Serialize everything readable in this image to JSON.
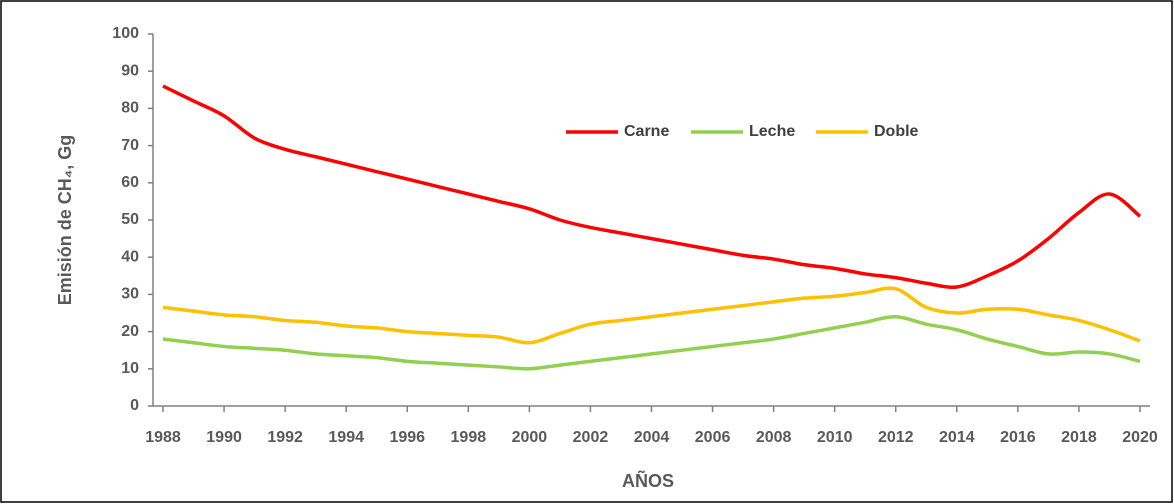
{
  "chart_data": {
    "type": "line",
    "x_label": "AÑOS",
    "y_label": "Emisión de CH₄, Gg",
    "x": [
      1988,
      1989,
      1990,
      1991,
      1992,
      1993,
      1994,
      1995,
      1996,
      1997,
      1998,
      1999,
      2000,
      2001,
      2002,
      2003,
      2004,
      2005,
      2006,
      2007,
      2008,
      2009,
      2010,
      2011,
      2012,
      2013,
      2014,
      2015,
      2016,
      2017,
      2018,
      2019,
      2020
    ],
    "series": [
      {
        "name": "Carne",
        "color": "#ff0000",
        "values": [
          86,
          82,
          78,
          72,
          69,
          67,
          65,
          63,
          61,
          59,
          57,
          55,
          53,
          50,
          48,
          46.5,
          45,
          43.5,
          42,
          40.5,
          39.5,
          38,
          37,
          35.5,
          34.5,
          33,
          32,
          35,
          39,
          45,
          52,
          57,
          51
        ]
      },
      {
        "name": "Leche",
        "color": "#92d050",
        "values": [
          18,
          17,
          16,
          15.5,
          15,
          14,
          13.5,
          13,
          12,
          11.5,
          11,
          10.5,
          10,
          11,
          12,
          13,
          14,
          15,
          16,
          17,
          18,
          19.5,
          21,
          22.5,
          24,
          22,
          20.5,
          18,
          16,
          14,
          14.5,
          14,
          12
        ]
      },
      {
        "name": "Doble",
        "color": "#ffc000",
        "values": [
          26.5,
          25.5,
          24.5,
          24,
          23,
          22.5,
          21.5,
          21,
          20,
          19.5,
          19,
          18.5,
          17,
          19.5,
          22,
          23,
          24,
          25,
          26,
          27,
          28,
          29,
          29.5,
          30.5,
          31.5,
          26.5,
          25,
          26,
          26,
          24.5,
          23,
          20.5,
          17.5
        ]
      }
    ],
    "xlim": [
      1988,
      2020
    ],
    "xticks": [
      1988,
      1990,
      1992,
      1994,
      1996,
      1998,
      2000,
      2002,
      2004,
      2006,
      2008,
      2010,
      2012,
      2014,
      2016,
      2018,
      2020
    ],
    "ylim": [
      0,
      100
    ],
    "yticks": [
      0,
      10,
      20,
      30,
      40,
      50,
      60,
      70,
      80,
      90,
      100
    ],
    "legend": "top",
    "grid": false
  }
}
